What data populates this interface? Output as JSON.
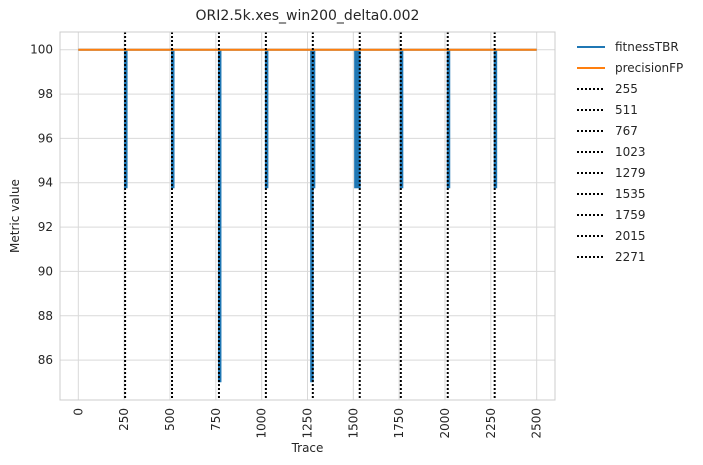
{
  "chart_data": {
    "type": "line",
    "title": "ORI2.5k.xes_win200_delta0.002",
    "xlabel": "Trace",
    "ylabel": "Metric value",
    "xlim": [
      -100,
      2600
    ],
    "ylim": [
      84.2,
      100.8
    ],
    "xticks": [
      0,
      250,
      500,
      750,
      1000,
      1250,
      1500,
      1750,
      2000,
      2250,
      2500
    ],
    "yticks": [
      86,
      88,
      90,
      92,
      94,
      96,
      98,
      100
    ],
    "grid": true,
    "legend_position": "outside-right",
    "series": [
      {
        "name": "fitnessTBR",
        "color": "#1f77b4",
        "baseline": 100,
        "dips": [
          {
            "x_start": 255,
            "x_end": 260,
            "min": 93.75
          },
          {
            "x_start": 511,
            "x_end": 516,
            "min": 93.75
          },
          {
            "x_start": 767,
            "x_end": 772,
            "min": 85.0
          },
          {
            "x_start": 1023,
            "x_end": 1028,
            "min": 93.75
          },
          {
            "x_start": 1270,
            "x_end": 1279,
            "min": 85.0
          },
          {
            "x_start": 1279,
            "x_end": 1290,
            "min": 93.75
          },
          {
            "x_start": 1510,
            "x_end": 1540,
            "min": 93.75
          },
          {
            "x_start": 1759,
            "x_end": 1764,
            "min": 93.75
          },
          {
            "x_start": 2015,
            "x_end": 2020,
            "min": 93.75
          },
          {
            "x_start": 2271,
            "x_end": 2276,
            "min": 93.75
          }
        ]
      },
      {
        "name": "precisionFP",
        "color": "#ff7f0e",
        "x": [
          0,
          2500
        ],
        "y": [
          100,
          100
        ]
      }
    ],
    "drift_lines": {
      "color": "#000000",
      "style": "dotted",
      "values": [
        "255",
        "511",
        "767",
        "1023",
        "1279",
        "1535",
        "1759",
        "2015",
        "2271"
      ]
    }
  }
}
